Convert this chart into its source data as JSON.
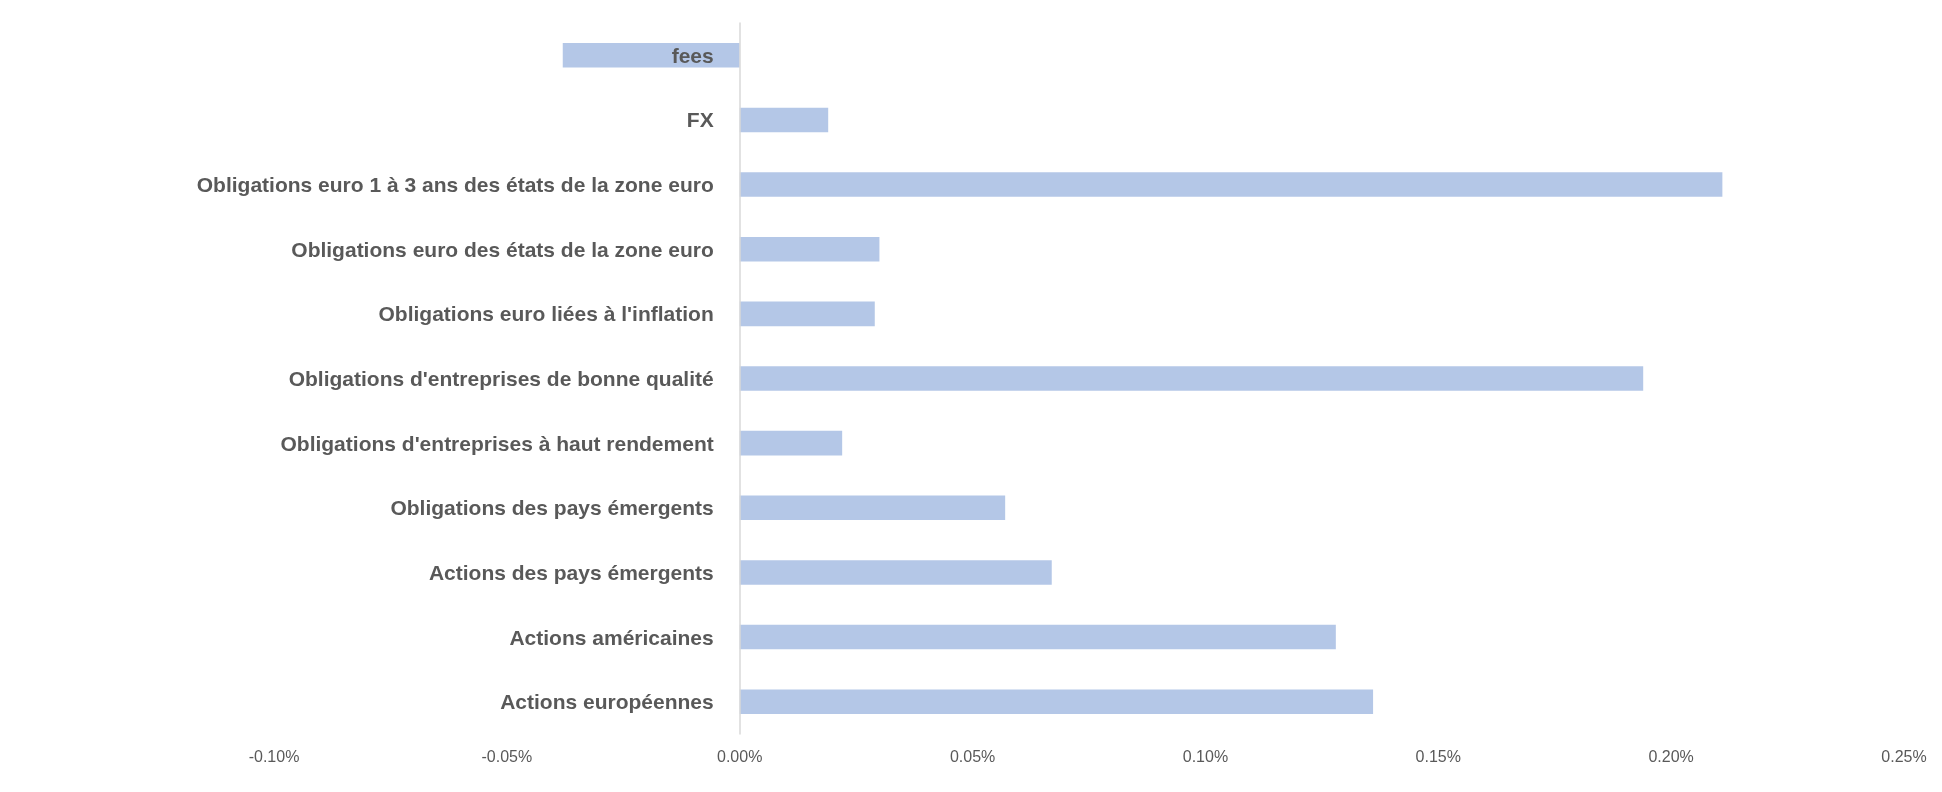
{
  "chart_data": {
    "type": "bar",
    "orientation": "horizontal",
    "categories": [
      "fees",
      "FX",
      "Obligations euro 1 à 3 ans des états de la zone euro",
      "Obligations euro des états de la zone euro",
      "Obligations euro liées à l'inflation",
      "Obligations d'entreprises de bonne qualité",
      "Obligations d'entreprises à haut rendement",
      "Obligations des pays émergents",
      "Actions des pays émergents",
      "Actions américaines",
      "Actions européennes"
    ],
    "values": [
      -0.038,
      0.019,
      0.211,
      0.03,
      0.029,
      0.194,
      0.022,
      0.057,
      0.067,
      0.128,
      0.136
    ],
    "color": "#b4c7e7",
    "xlim": [
      -0.1,
      0.25
    ],
    "xticks": [
      {
        "value": -0.1,
        "label": "-0.10%"
      },
      {
        "value": -0.05,
        "label": "-0.05%"
      },
      {
        "value": 0,
        "label": "0.00%"
      },
      {
        "value": 0.05,
        "label": "0.05%"
      },
      {
        "value": 0.1,
        "label": "0.10%"
      },
      {
        "value": 0.15,
        "label": "0.15%"
      },
      {
        "value": 0.2,
        "label": "0.20%"
      },
      {
        "value": 0.25,
        "label": "0.25%"
      }
    ],
    "grid": false
  }
}
